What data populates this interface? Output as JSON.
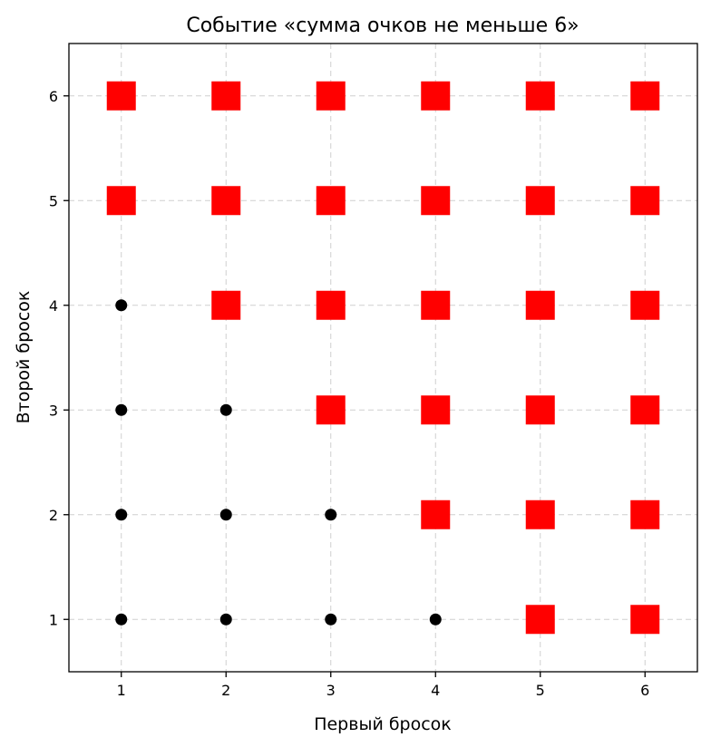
{
  "chart_data": {
    "type": "scatter",
    "title": "Событие «сумма очков не меньше 6»",
    "xlabel": "Первый бросок",
    "ylabel": "Второй бросок",
    "xlim": [
      0.5,
      6.5
    ],
    "ylim": [
      0.5,
      6.5
    ],
    "xticks": [
      1,
      2,
      3,
      4,
      5,
      6
    ],
    "yticks": [
      1,
      2,
      3,
      4,
      5,
      6
    ],
    "grid": true,
    "series": [
      {
        "marker": "circle",
        "color": "#000000",
        "points": [
          [
            1,
            1
          ],
          [
            2,
            1
          ],
          [
            3,
            1
          ],
          [
            4,
            1
          ],
          [
            1,
            2
          ],
          [
            2,
            2
          ],
          [
            3,
            2
          ],
          [
            1,
            3
          ],
          [
            2,
            3
          ],
          [
            1,
            4
          ]
        ]
      },
      {
        "marker": "square",
        "color": "#ff0000",
        "points": [
          [
            5,
            1
          ],
          [
            6,
            1
          ],
          [
            4,
            2
          ],
          [
            5,
            2
          ],
          [
            6,
            2
          ],
          [
            3,
            3
          ],
          [
            4,
            3
          ],
          [
            5,
            3
          ],
          [
            6,
            3
          ],
          [
            2,
            4
          ],
          [
            3,
            4
          ],
          [
            4,
            4
          ],
          [
            5,
            4
          ],
          [
            6,
            4
          ],
          [
            1,
            5
          ],
          [
            2,
            5
          ],
          [
            3,
            5
          ],
          [
            4,
            5
          ],
          [
            5,
            5
          ],
          [
            6,
            5
          ],
          [
            1,
            6
          ],
          [
            2,
            6
          ],
          [
            3,
            6
          ],
          [
            4,
            6
          ],
          [
            5,
            6
          ],
          [
            6,
            6
          ]
        ]
      }
    ]
  }
}
